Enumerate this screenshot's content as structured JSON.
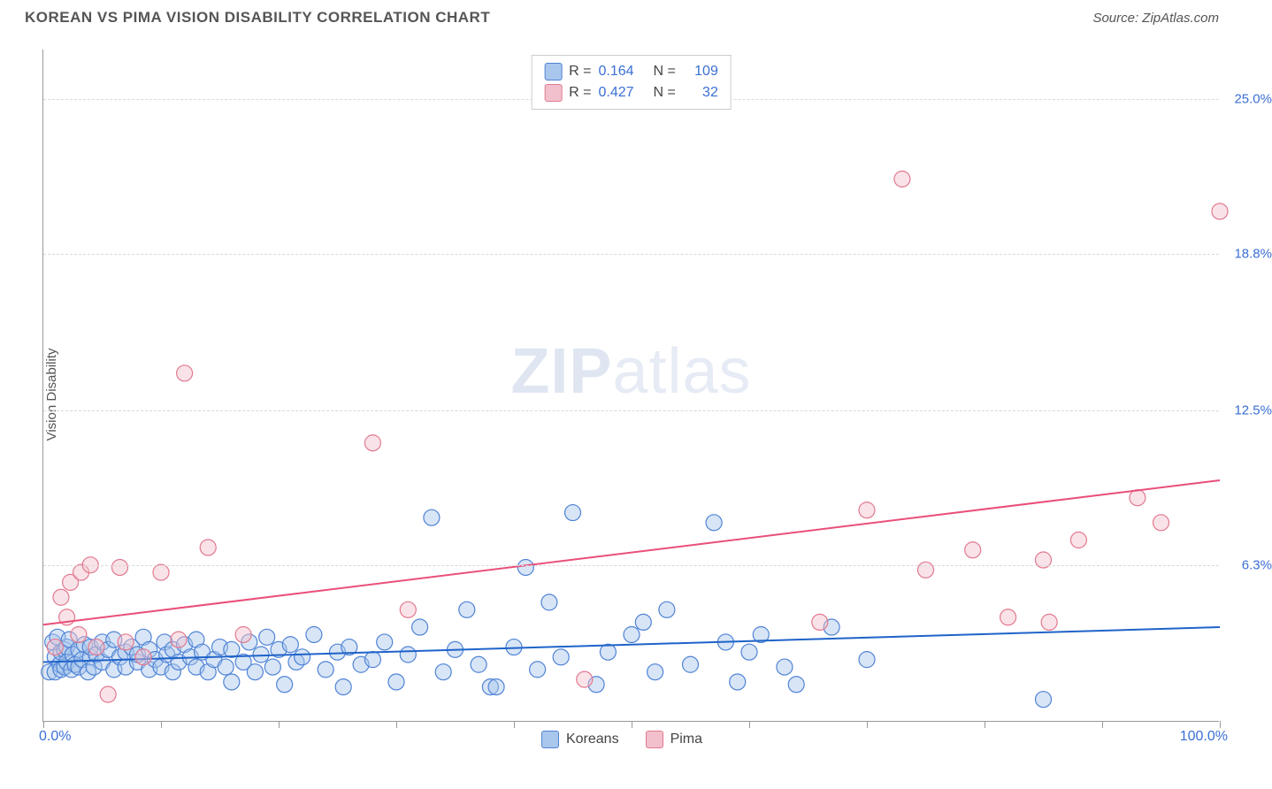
{
  "header": {
    "title": "KOREAN VS PIMA VISION DISABILITY CORRELATION CHART",
    "source": "Source: ZipAtlas.com"
  },
  "watermark": {
    "bold": "ZIP",
    "light": "atlas"
  },
  "chart": {
    "type": "scatter",
    "ylabel": "Vision Disability",
    "xlim": [
      0,
      100
    ],
    "ylim": [
      0,
      27
    ],
    "background_color": "#ffffff",
    "grid_color": "#d9d9d9",
    "axis_color": "#999999",
    "tick_label_color": "#3b6fd4",
    "yticks": [
      {
        "value": 6.3,
        "label": "6.3%"
      },
      {
        "value": 12.5,
        "label": "12.5%"
      },
      {
        "value": 18.8,
        "label": "18.8%"
      },
      {
        "value": 25.0,
        "label": "25.0%"
      }
    ],
    "xticks_major": [
      0,
      100
    ],
    "xticks_minor_step": 10,
    "xaxis_labels": {
      "left": "0.0%",
      "right": "100.0%"
    },
    "marker_radius": 9,
    "marker_opacity": 0.45,
    "trend_line_width": 2,
    "series": {
      "koreans": {
        "label": "Koreans",
        "fill": "#a9c6ec",
        "stroke": "#4f83d6",
        "line_color": "#1f63c9",
        "R": "0.164",
        "N": "109",
        "trend": {
          "x0": 0,
          "y0": 2.4,
          "x1": 100,
          "y1": 3.8
        },
        "points": [
          [
            0.5,
            2.0
          ],
          [
            0.8,
            3.2
          ],
          [
            1.0,
            2.6
          ],
          [
            1.0,
            2.0
          ],
          [
            1.2,
            3.4
          ],
          [
            1.4,
            2.3
          ],
          [
            1.5,
            2.8
          ],
          [
            1.5,
            2.1
          ],
          [
            1.8,
            2.9
          ],
          [
            1.8,
            2.2
          ],
          [
            2.0,
            3.0
          ],
          [
            2.0,
            2.4
          ],
          [
            2.2,
            3.3
          ],
          [
            2.4,
            2.1
          ],
          [
            2.5,
            2.7
          ],
          [
            2.7,
            2.3
          ],
          [
            3.0,
            2.9
          ],
          [
            3.0,
            2.2
          ],
          [
            3.3,
            2.5
          ],
          [
            3.5,
            3.1
          ],
          [
            3.8,
            2.0
          ],
          [
            4.0,
            2.6
          ],
          [
            4.0,
            3.0
          ],
          [
            4.3,
            2.2
          ],
          [
            4.5,
            2.7
          ],
          [
            5.0,
            2.4
          ],
          [
            5.0,
            3.2
          ],
          [
            5.5,
            2.9
          ],
          [
            6.0,
            2.1
          ],
          [
            6.0,
            3.3
          ],
          [
            6.5,
            2.6
          ],
          [
            7.0,
            2.8
          ],
          [
            7.0,
            2.2
          ],
          [
            7.5,
            3.0
          ],
          [
            8.0,
            2.4
          ],
          [
            8.0,
            2.7
          ],
          [
            8.5,
            3.4
          ],
          [
            9.0,
            2.1
          ],
          [
            9.0,
            2.9
          ],
          [
            9.5,
            2.5
          ],
          [
            10.0,
            2.2
          ],
          [
            10.3,
            3.2
          ],
          [
            10.5,
            2.7
          ],
          [
            11.0,
            2.0
          ],
          [
            11.0,
            2.9
          ],
          [
            11.5,
            2.4
          ],
          [
            12.0,
            3.1
          ],
          [
            12.5,
            2.6
          ],
          [
            13.0,
            2.2
          ],
          [
            13.0,
            3.3
          ],
          [
            13.5,
            2.8
          ],
          [
            14.0,
            2.0
          ],
          [
            14.5,
            2.5
          ],
          [
            15.0,
            3.0
          ],
          [
            15.5,
            2.2
          ],
          [
            16.0,
            2.9
          ],
          [
            16.0,
            1.6
          ],
          [
            17.0,
            2.4
          ],
          [
            17.5,
            3.2
          ],
          [
            18.0,
            2.0
          ],
          [
            18.5,
            2.7
          ],
          [
            19.0,
            3.4
          ],
          [
            19.5,
            2.2
          ],
          [
            20.0,
            2.9
          ],
          [
            20.5,
            1.5
          ],
          [
            21.0,
            3.1
          ],
          [
            21.5,
            2.4
          ],
          [
            22.0,
            2.6
          ],
          [
            23.0,
            3.5
          ],
          [
            24.0,
            2.1
          ],
          [
            25.0,
            2.8
          ],
          [
            25.5,
            1.4
          ],
          [
            26.0,
            3.0
          ],
          [
            27.0,
            2.3
          ],
          [
            28.0,
            2.5
          ],
          [
            29.0,
            3.2
          ],
          [
            30.0,
            1.6
          ],
          [
            31.0,
            2.7
          ],
          [
            32.0,
            3.8
          ],
          [
            33.0,
            8.2
          ],
          [
            34.0,
            2.0
          ],
          [
            35.0,
            2.9
          ],
          [
            36.0,
            4.5
          ],
          [
            37.0,
            2.3
          ],
          [
            38.0,
            1.4
          ],
          [
            38.5,
            1.4
          ],
          [
            40.0,
            3.0
          ],
          [
            41.0,
            6.2
          ],
          [
            42.0,
            2.1
          ],
          [
            43.0,
            4.8
          ],
          [
            44.0,
            2.6
          ],
          [
            45.0,
            8.4
          ],
          [
            47.0,
            1.5
          ],
          [
            48.0,
            2.8
          ],
          [
            50.0,
            3.5
          ],
          [
            51.0,
            4.0
          ],
          [
            52.0,
            2.0
          ],
          [
            53.0,
            4.5
          ],
          [
            55.0,
            2.3
          ],
          [
            57.0,
            8.0
          ],
          [
            58.0,
            3.2
          ],
          [
            59.0,
            1.6
          ],
          [
            60.0,
            2.8
          ],
          [
            61.0,
            3.5
          ],
          [
            63.0,
            2.2
          ],
          [
            64.0,
            1.5
          ],
          [
            67.0,
            3.8
          ],
          [
            70.0,
            2.5
          ],
          [
            85.0,
            0.9
          ]
        ]
      },
      "pima": {
        "label": "Pima",
        "fill": "#f2c0cd",
        "stroke": "#e2798f",
        "line_color": "#e94f7a",
        "R": "0.427",
        "N": "32",
        "trend": {
          "x0": 0,
          "y0": 3.9,
          "x1": 100,
          "y1": 9.7
        },
        "points": [
          [
            1.0,
            3.0
          ],
          [
            1.5,
            5.0
          ],
          [
            2.0,
            4.2
          ],
          [
            2.3,
            5.6
          ],
          [
            3.0,
            3.5
          ],
          [
            3.2,
            6.0
          ],
          [
            4.0,
            6.3
          ],
          [
            4.5,
            3.0
          ],
          [
            5.5,
            1.1
          ],
          [
            6.5,
            6.2
          ],
          [
            7.0,
            3.2
          ],
          [
            8.5,
            2.6
          ],
          [
            10.0,
            6.0
          ],
          [
            11.5,
            3.3
          ],
          [
            12.0,
            14.0
          ],
          [
            14.0,
            7.0
          ],
          [
            17.0,
            3.5
          ],
          [
            28.0,
            11.2
          ],
          [
            31.0,
            4.5
          ],
          [
            46.0,
            1.7
          ],
          [
            66.0,
            4.0
          ],
          [
            70.0,
            8.5
          ],
          [
            73.0,
            21.8
          ],
          [
            75.0,
            6.1
          ],
          [
            79.0,
            6.9
          ],
          [
            82.0,
            4.2
          ],
          [
            85.0,
            6.5
          ],
          [
            85.5,
            4.0
          ],
          [
            88.0,
            7.3
          ],
          [
            93.0,
            9.0
          ],
          [
            95.0,
            8.0
          ],
          [
            100.0,
            20.5
          ]
        ]
      }
    }
  },
  "legend_top": {
    "rows": [
      {
        "series": "koreans",
        "r_label": "R =",
        "n_label": "N ="
      },
      {
        "series": "pima",
        "r_label": "R =",
        "n_label": "N ="
      }
    ]
  },
  "legend_bottom": [
    {
      "series": "koreans"
    },
    {
      "series": "pima"
    }
  ]
}
